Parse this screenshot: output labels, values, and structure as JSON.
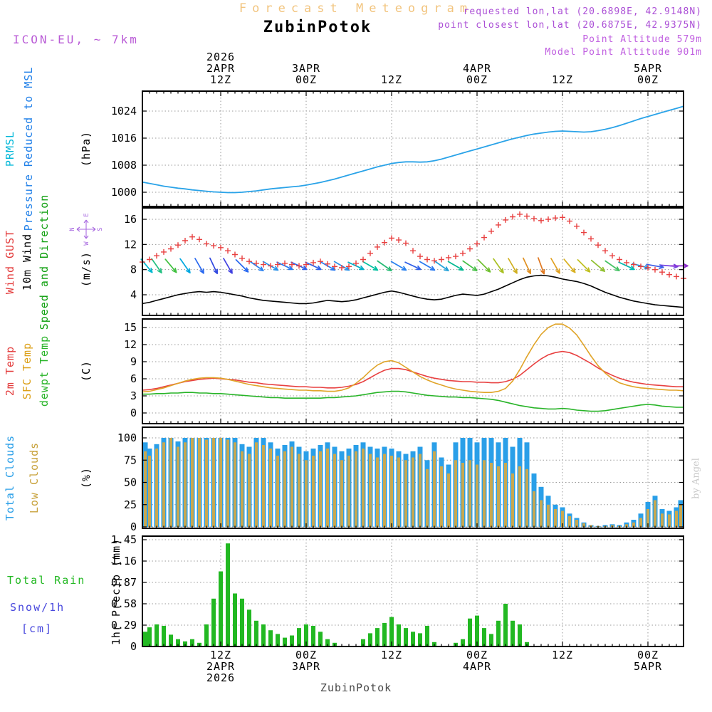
{
  "header": {
    "figure_title": "Forecast Meteogram",
    "station": "ZubinPotok",
    "requested_lonlat": "requested lon,lat (20.6898E, 42.9148N)",
    "closest_lonlat": "point closest lon,lat (20.6875E, 42.9375N)",
    "point_altitude": "Point Altitude 579m",
    "model_point_altitude": "Model Point Altitude 901m",
    "model_label": "ICON-EU, ~ 7km",
    "credit": "by Angel",
    "footer_station": "ZubinPotok"
  },
  "time_axis": {
    "start": "2026-04-02 01Z",
    "step_hours": 1,
    "n_points": 77,
    "gridlines_t": [
      11,
      23,
      35,
      47,
      59,
      71
    ],
    "top_labels": [
      {
        "t": 11,
        "lines": [
          "2026",
          "2APR",
          "12Z"
        ]
      },
      {
        "t": 23,
        "lines": [
          "3APR",
          "00Z"
        ]
      },
      {
        "t": 35,
        "lines": [
          "12Z"
        ]
      },
      {
        "t": 47,
        "lines": [
          "4APR",
          "00Z"
        ]
      },
      {
        "t": 59,
        "lines": [
          "12Z"
        ]
      },
      {
        "t": 71,
        "lines": [
          "5APR",
          "00Z"
        ]
      }
    ],
    "bottom_labels": [
      {
        "t": 11,
        "lines": [
          "12Z",
          "2APR",
          "2026"
        ]
      },
      {
        "t": 23,
        "lines": [
          "00Z",
          "3APR"
        ]
      },
      {
        "t": 35,
        "lines": [
          "12Z"
        ]
      },
      {
        "t": 47,
        "lines": [
          "00Z",
          "4APR"
        ]
      },
      {
        "t": 59,
        "lines": [
          "12Z"
        ]
      },
      {
        "t": 71,
        "lines": [
          "00Z",
          "5APR"
        ]
      }
    ]
  },
  "chart_data": [
    {
      "id": "pressure",
      "type": "line",
      "title_labels": [
        {
          "text": "PRMSL",
          "color": "#00b7d8"
        },
        {
          "text": "Pressure Reduced to MSL",
          "color": "#1f7fe8"
        }
      ],
      "unit_label": "(hPa)",
      "yticks": [
        "1000",
        "1008",
        "1016",
        "1024"
      ],
      "ylim": [
        995.8,
        1030
      ],
      "series": [
        {
          "name": "Pressure Reduced to MSL",
          "color": "#2aa3e8",
          "values": [
            1003.0,
            1002.6,
            1002.2,
            1001.8,
            1001.5,
            1001.2,
            1001.0,
            1000.7,
            1000.5,
            1000.3,
            1000.1,
            1000.0,
            999.9,
            999.9,
            1000.0,
            1000.2,
            1000.4,
            1000.7,
            1001.0,
            1001.2,
            1001.4,
            1001.6,
            1001.8,
            1002.1,
            1002.5,
            1002.9,
            1003.4,
            1003.9,
            1004.5,
            1005.1,
            1005.7,
            1006.3,
            1006.9,
            1007.5,
            1008.0,
            1008.5,
            1008.8,
            1009.0,
            1009.0,
            1008.9,
            1009.0,
            1009.3,
            1009.8,
            1010.4,
            1011.0,
            1011.6,
            1012.2,
            1012.8,
            1013.4,
            1014.0,
            1014.6,
            1015.2,
            1015.8,
            1016.3,
            1016.8,
            1017.2,
            1017.5,
            1017.8,
            1018.0,
            1018.1,
            1018.0,
            1017.9,
            1017.8,
            1017.9,
            1018.2,
            1018.6,
            1019.1,
            1019.7,
            1020.4,
            1021.1,
            1021.8,
            1022.4,
            1023.0,
            1023.6,
            1024.2,
            1024.8,
            1025.4
          ]
        }
      ]
    },
    {
      "id": "wind",
      "type": "line+markers+arrows",
      "title_labels": [
        {
          "text": "Wind GUST",
          "color": "#e33b3b"
        },
        {
          "text": "10m Wind",
          "color": "#000000"
        },
        {
          "text": "Speed and Direction",
          "color": "#10a010"
        }
      ],
      "unit_label": "(m/s)",
      "compass": [
        "N",
        "E",
        "S",
        "W"
      ],
      "yticks": [
        "4",
        "8",
        "12",
        "16"
      ],
      "ylim": [
        0.7,
        17.8
      ],
      "series": [
        {
          "name": "Wind GUST",
          "style": "plus",
          "color": "#e84040",
          "values": [
            9.2,
            9.6,
            10.2,
            10.8,
            11.3,
            11.9,
            12.6,
            13.2,
            12.8,
            12.1,
            11.8,
            11.5,
            11.0,
            10.4,
            9.8,
            9.3,
            9.0,
            8.8,
            8.6,
            8.8,
            9.0,
            8.8,
            8.6,
            8.8,
            9.1,
            9.3,
            8.9,
            8.5,
            8.3,
            8.5,
            9.0,
            9.6,
            10.6,
            11.6,
            12.3,
            13.0,
            12.7,
            12.2,
            11.0,
            10.1,
            9.6,
            9.4,
            9.6,
            9.9,
            10.1,
            10.6,
            11.3,
            12.1,
            13.1,
            14.1,
            15.1,
            15.9,
            16.4,
            16.8,
            16.5,
            16.1,
            15.8,
            16.0,
            16.2,
            16.3,
            15.7,
            14.9,
            13.9,
            12.9,
            11.9,
            11.0,
            10.2,
            9.6,
            9.1,
            8.8,
            8.5,
            8.3,
            8.0,
            7.6,
            7.2,
            6.9,
            6.6
          ]
        },
        {
          "name": "10m Wind Speed",
          "style": "line",
          "color": "#000000",
          "values": [
            2.6,
            2.8,
            3.1,
            3.4,
            3.7,
            4.0,
            4.2,
            4.4,
            4.5,
            4.4,
            4.5,
            4.4,
            4.2,
            4.0,
            3.8,
            3.5,
            3.3,
            3.1,
            3.0,
            2.9,
            2.8,
            2.7,
            2.6,
            2.6,
            2.7,
            2.9,
            3.1,
            3.0,
            2.9,
            3.0,
            3.2,
            3.5,
            3.8,
            4.1,
            4.4,
            4.6,
            4.4,
            4.1,
            3.8,
            3.5,
            3.3,
            3.2,
            3.3,
            3.6,
            3.9,
            4.1,
            4.0,
            3.9,
            4.1,
            4.5,
            4.9,
            5.4,
            5.9,
            6.4,
            6.8,
            7.0,
            7.1,
            7.0,
            6.8,
            6.5,
            6.3,
            6.1,
            5.8,
            5.4,
            4.9,
            4.4,
            4.0,
            3.6,
            3.3,
            3.0,
            2.8,
            2.6,
            2.4,
            2.3,
            2.2,
            2.1,
            2.0
          ]
        }
      ],
      "arrows": {
        "t_step": 2,
        "anchor_value": 8.6,
        "angles_deg_down_from_east": [
          50,
          55,
          50,
          55,
          60,
          65,
          60,
          45,
          35,
          30,
          25,
          25,
          25,
          30,
          30,
          25,
          30,
          35,
          30,
          25,
          30,
          35,
          30,
          35,
          45,
          55,
          60,
          65,
          70,
          60,
          50,
          45,
          40,
          35,
          25,
          15,
          10,
          5,
          0
        ],
        "colors": [
          "#00b8d0",
          "#20c080",
          "#40c040",
          "#00a8e0",
          "#2868f0",
          "#3048e0",
          "#4040e0",
          "#2868f0",
          "#2880f0",
          "#2890e8",
          "#2878f0",
          "#3060e8",
          "#3060e8",
          "#2878f0",
          "#2890e8",
          "#00b0c8",
          "#00c0a0",
          "#20b870",
          "#2880f0",
          "#3060e8",
          "#2878f0",
          "#20a0d8",
          "#00b890",
          "#48c048",
          "#70c030",
          "#a8c020",
          "#d0b020",
          "#e09020",
          "#e07820",
          "#e0a020",
          "#d8b020",
          "#c0c020",
          "#90c030",
          "#40c060",
          "#00b8b0",
          "#2090e0",
          "#4060e8",
          "#7040e0",
          "#9030d0"
        ]
      }
    },
    {
      "id": "temperature",
      "type": "line",
      "title_labels": [
        {
          "text": "2m Temp",
          "color": "#e33b3b"
        },
        {
          "text": "SFC Temp",
          "color": "#dca018"
        },
        {
          "text": "dewpt Temp",
          "color": "#28b428"
        }
      ],
      "unit_label": "(C)",
      "yticks": [
        "0",
        "3",
        "6",
        "9",
        "12",
        "15"
      ],
      "ylim": [
        -1.9,
        16.5
      ],
      "series": [
        {
          "name": "2m Temp",
          "color": "#e84040",
          "values": [
            4.0,
            4.1,
            4.3,
            4.6,
            4.9,
            5.2,
            5.5,
            5.7,
            5.9,
            6.0,
            6.1,
            6.0,
            5.9,
            5.8,
            5.6,
            5.4,
            5.3,
            5.1,
            5.0,
            4.9,
            4.8,
            4.7,
            4.6,
            4.6,
            4.5,
            4.5,
            4.4,
            4.4,
            4.5,
            4.7,
            5.0,
            5.5,
            6.2,
            6.9,
            7.5,
            7.8,
            7.8,
            7.6,
            7.2,
            6.8,
            6.4,
            6.1,
            5.9,
            5.7,
            5.6,
            5.5,
            5.5,
            5.4,
            5.4,
            5.3,
            5.3,
            5.5,
            5.9,
            6.6,
            7.6,
            8.6,
            9.5,
            10.2,
            10.6,
            10.8,
            10.6,
            10.1,
            9.4,
            8.7,
            7.9,
            7.2,
            6.6,
            6.1,
            5.7,
            5.4,
            5.2,
            5.0,
            4.9,
            4.8,
            4.7,
            4.6,
            4.6
          ]
        },
        {
          "name": "SFC Temp",
          "color": "#e0a428",
          "values": [
            3.7,
            3.8,
            4.1,
            4.4,
            4.8,
            5.2,
            5.6,
            5.9,
            6.1,
            6.2,
            6.2,
            6.1,
            5.9,
            5.6,
            5.3,
            5.0,
            4.8,
            4.6,
            4.4,
            4.3,
            4.2,
            4.1,
            4.0,
            4.0,
            3.9,
            3.9,
            3.8,
            3.8,
            4.0,
            4.4,
            5.2,
            6.2,
            7.4,
            8.4,
            9.0,
            9.2,
            8.8,
            8.0,
            7.2,
            6.4,
            5.8,
            5.3,
            4.9,
            4.5,
            4.2,
            4.0,
            3.8,
            3.7,
            3.6,
            3.6,
            3.8,
            4.3,
            5.6,
            7.6,
            9.9,
            12.0,
            13.8,
            15.0,
            15.6,
            15.6,
            14.9,
            13.7,
            11.9,
            10.0,
            8.3,
            7.0,
            6.0,
            5.3,
            4.9,
            4.6,
            4.4,
            4.3,
            4.2,
            4.1,
            4.0,
            4.0,
            3.9
          ]
        },
        {
          "name": "dewpt Temp",
          "color": "#28b428",
          "values": [
            3.3,
            3.3,
            3.4,
            3.4,
            3.5,
            3.5,
            3.6,
            3.6,
            3.5,
            3.5,
            3.4,
            3.4,
            3.3,
            3.2,
            3.1,
            3.0,
            2.9,
            2.8,
            2.7,
            2.7,
            2.6,
            2.6,
            2.6,
            2.6,
            2.6,
            2.6,
            2.7,
            2.7,
            2.8,
            2.9,
            3.0,
            3.2,
            3.4,
            3.6,
            3.7,
            3.8,
            3.8,
            3.7,
            3.5,
            3.3,
            3.1,
            3.0,
            2.9,
            2.8,
            2.8,
            2.7,
            2.7,
            2.6,
            2.5,
            2.4,
            2.2,
            1.9,
            1.6,
            1.3,
            1.1,
            0.9,
            0.8,
            0.7,
            0.7,
            0.8,
            0.7,
            0.5,
            0.4,
            0.3,
            0.3,
            0.4,
            0.6,
            0.8,
            1.0,
            1.2,
            1.4,
            1.5,
            1.4,
            1.2,
            1.1,
            1.0,
            1.0
          ]
        }
      ]
    },
    {
      "id": "clouds",
      "type": "bar",
      "title_labels": [
        {
          "text": "Total Clouds",
          "color": "#2a9fe8"
        },
        {
          "text": "Low Clouds",
          "color": "#c8a23c"
        }
      ],
      "unit_label": "(%)",
      "yticks": [
        "0",
        "25",
        "50",
        "75",
        "100"
      ],
      "ylim": [
        0,
        112
      ],
      "series": [
        {
          "name": "Total Clouds",
          "color": "#2a9fe8",
          "values": [
            95,
            88,
            93,
            100,
            100,
            96,
            100,
            100,
            100,
            100,
            100,
            100,
            100,
            100,
            93,
            90,
            100,
            100,
            95,
            88,
            92,
            96,
            90,
            85,
            88,
            92,
            95,
            90,
            85,
            88,
            92,
            95,
            90,
            88,
            90,
            88,
            85,
            82,
            85,
            90,
            75,
            95,
            78,
            70,
            95,
            100,
            100,
            95,
            100,
            100,
            95,
            100,
            90,
            100,
            95,
            60,
            45,
            35,
            25,
            22,
            15,
            10,
            5,
            2,
            1,
            2,
            3,
            2,
            5,
            8,
            15,
            28,
            35,
            20,
            18,
            22,
            30
          ]
        },
        {
          "name": "Low Clouds",
          "color": "#c8a850",
          "values": [
            85,
            80,
            88,
            95,
            100,
            90,
            95,
            100,
            100,
            98,
            100,
            100,
            98,
            95,
            85,
            82,
            95,
            92,
            88,
            80,
            85,
            90,
            82,
            75,
            80,
            85,
            88,
            82,
            75,
            80,
            85,
            88,
            82,
            78,
            82,
            80,
            78,
            75,
            78,
            82,
            65,
            85,
            68,
            60,
            75,
            72,
            75,
            70,
            75,
            72,
            68,
            72,
            60,
            68,
            65,
            40,
            30,
            25,
            20,
            18,
            12,
            8,
            4,
            2,
            1,
            1,
            2,
            1,
            3,
            5,
            10,
            20,
            30,
            15,
            14,
            18,
            25
          ]
        }
      ]
    },
    {
      "id": "precip",
      "type": "bar",
      "title_labels": [
        {
          "text": "Total  Rain",
          "color": "#22b822"
        },
        {
          "text": "Snow/1h",
          "color": "#4747dd"
        },
        {
          "text": "[cm]",
          "color": "#4747dd"
        }
      ],
      "unit_label": "1hr Precip (mm)",
      "yticks": [
        "0",
        "0.29",
        "0.58",
        "0.87",
        "1.16",
        "1.45"
      ],
      "ylim": [
        0,
        1.5
      ],
      "series": [
        {
          "name": "1hr Precip",
          "color": "#22b822",
          "values": [
            0.2,
            0.26,
            0.3,
            0.28,
            0.16,
            0.1,
            0.07,
            0.1,
            0.05,
            0.3,
            0.65,
            1.02,
            1.4,
            0.72,
            0.65,
            0.5,
            0.35,
            0.3,
            0.22,
            0.17,
            0.12,
            0.15,
            0.25,
            0.3,
            0.28,
            0.2,
            0.1,
            0.05,
            0,
            0,
            0,
            0.1,
            0.18,
            0.25,
            0.32,
            0.4,
            0.3,
            0.25,
            0.2,
            0.18,
            0.28,
            0.06,
            0,
            0,
            0.05,
            0.1,
            0.38,
            0.42,
            0.25,
            0.17,
            0.35,
            0.58,
            0.35,
            0.3,
            0.06,
            0,
            0,
            0,
            0,
            0,
            0,
            0,
            0,
            0,
            0,
            0,
            0,
            0,
            0,
            0,
            0,
            0,
            0,
            0,
            0,
            0,
            0
          ]
        }
      ]
    }
  ]
}
